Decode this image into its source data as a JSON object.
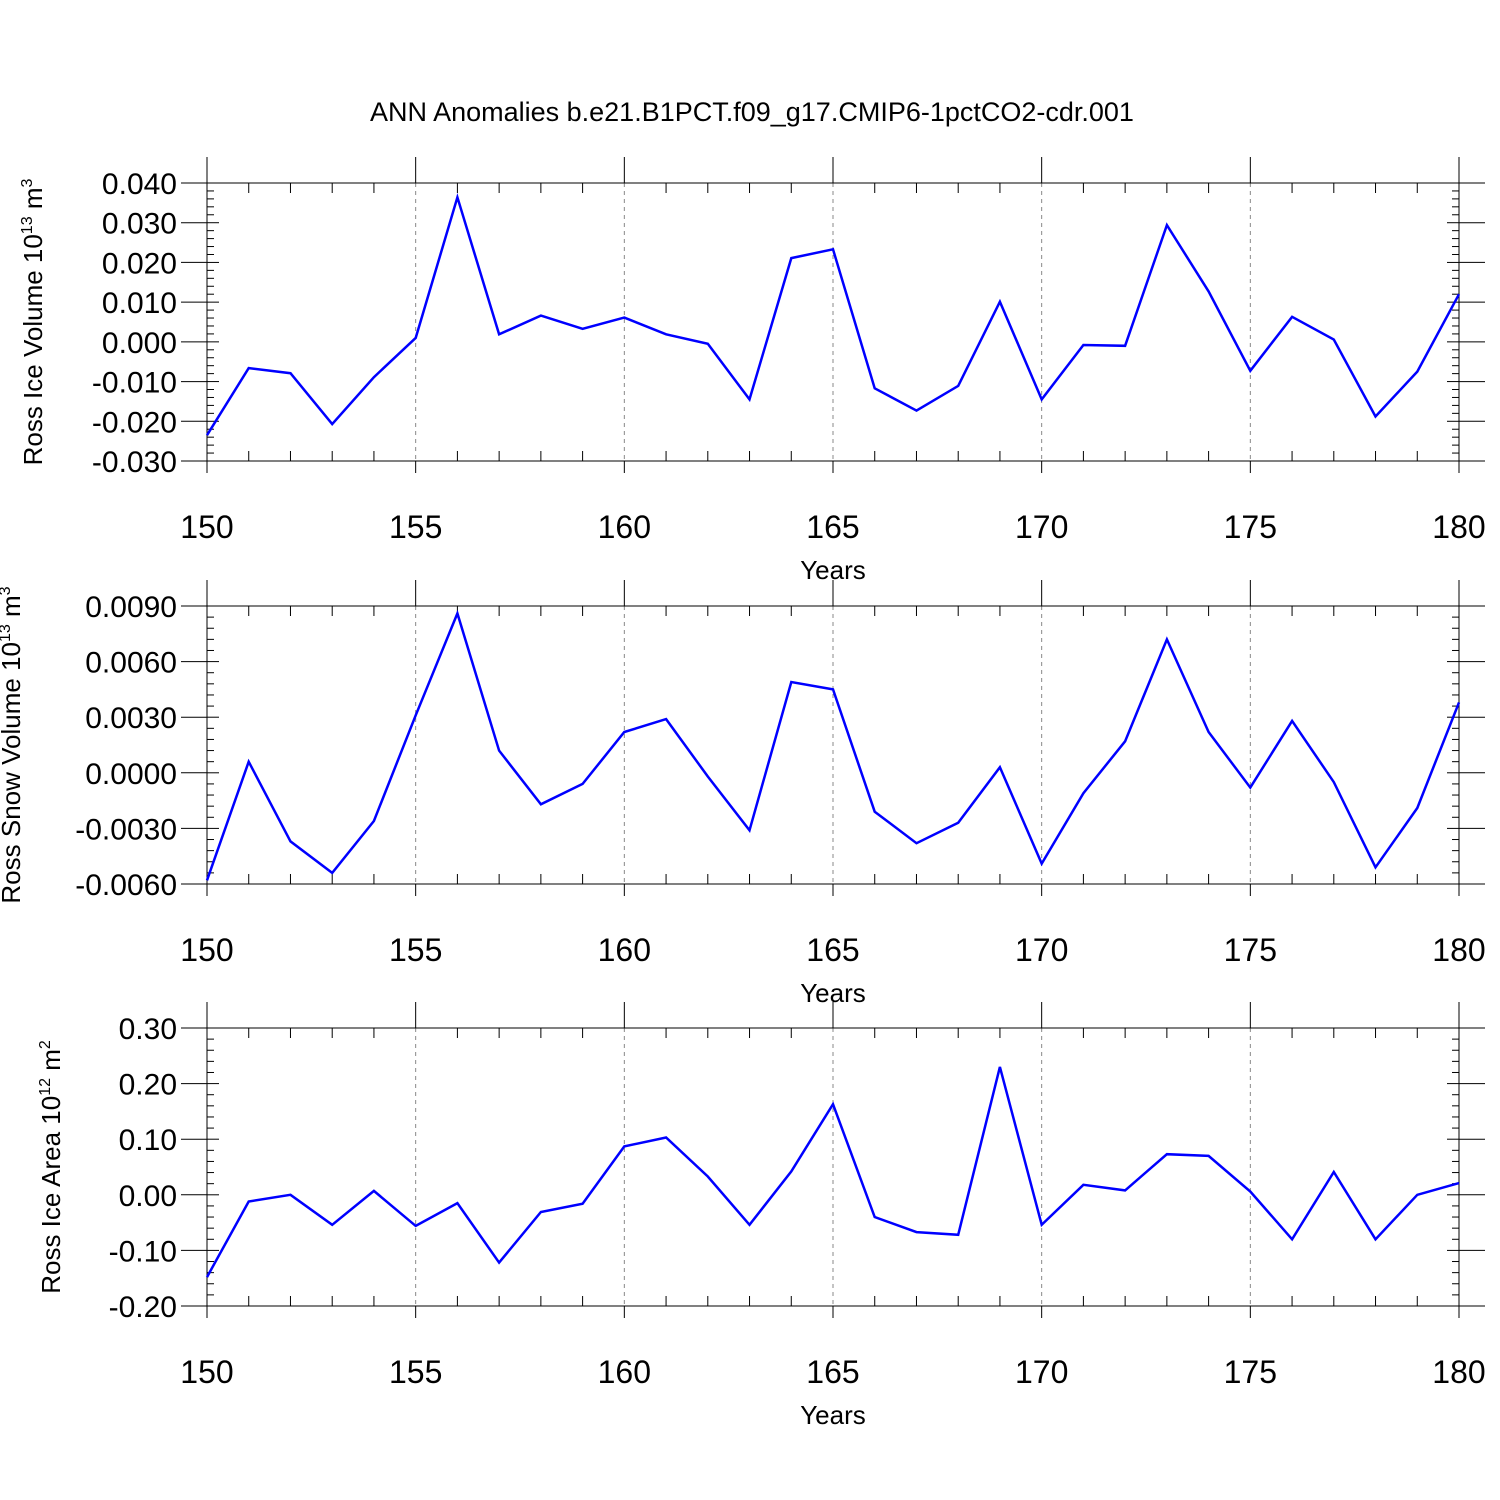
{
  "title": "ANN Anomalies b.e21.B1PCT.f09_g17.CMIP6-1pctCO2-cdr.001",
  "line_color": "#0000ff",
  "chart_data": [
    {
      "type": "line",
      "xlabel": "Years",
      "ylabel": "Ross Ice Volume 10",
      "ylabel_exp": "13",
      "ylabel_unit": "m",
      "ylabel_unit_exp": "3",
      "xlim": [
        150,
        180
      ],
      "ylim": [
        -0.03,
        0.04
      ],
      "yticks": [
        -0.03,
        -0.02,
        -0.01,
        0.0,
        0.01,
        0.02,
        0.03,
        0.04
      ],
      "ytick_labels": [
        "-0.030",
        "-0.020",
        "-0.010",
        "0.000",
        "0.010",
        "0.020",
        "0.030",
        "0.040"
      ],
      "xticks": [
        150,
        155,
        160,
        165,
        170,
        175,
        180
      ],
      "xtick_labels": [
        "150",
        "155",
        "160",
        "165",
        "170",
        "175",
        "180"
      ],
      "grid": "vertical dashed at major x ticks",
      "x": [
        150,
        151,
        152,
        153,
        154,
        155,
        156,
        157,
        158,
        159,
        160,
        161,
        162,
        163,
        164,
        165,
        166,
        167,
        168,
        169,
        170,
        171,
        172,
        173,
        174,
        175,
        176,
        177,
        178,
        179,
        180
      ],
      "y": [
        -0.0235,
        -0.0066,
        -0.0079,
        -0.0207,
        -0.0089,
        0.001,
        0.0364,
        0.0019,
        0.0066,
        0.0033,
        0.0061,
        0.0019,
        -0.0005,
        -0.0145,
        0.0211,
        0.0233,
        -0.0117,
        -0.0173,
        -0.0111,
        0.0101,
        -0.0145,
        -0.0008,
        -0.001,
        0.0294,
        0.0127,
        -0.0073,
        0.0063,
        0.0006,
        -0.0188,
        -0.0075,
        0.012
      ]
    },
    {
      "type": "line",
      "xlabel": "Years",
      "ylabel": "Ross Snow Volume 10",
      "ylabel_exp": "13",
      "ylabel_unit": "m",
      "ylabel_unit_exp": "3",
      "xlim": [
        150,
        180
      ],
      "ylim": [
        -0.006,
        0.009
      ],
      "yticks": [
        -0.006,
        -0.003,
        0.0,
        0.003,
        0.006,
        0.009
      ],
      "ytick_labels": [
        "-0.0060",
        "-0.0030",
        "0.0000",
        "0.0030",
        "0.0060",
        "0.0090"
      ],
      "xticks": [
        150,
        155,
        160,
        165,
        170,
        175,
        180
      ],
      "xtick_labels": [
        "150",
        "155",
        "160",
        "165",
        "170",
        "175",
        "180"
      ],
      "grid": "vertical dashed at major x ticks",
      "x": [
        150,
        151,
        152,
        153,
        154,
        155,
        156,
        157,
        158,
        159,
        160,
        161,
        162,
        163,
        164,
        165,
        166,
        167,
        168,
        169,
        170,
        171,
        172,
        173,
        174,
        175,
        176,
        177,
        178,
        179,
        180
      ],
      "y": [
        -0.0058,
        0.0006,
        -0.0037,
        -0.0054,
        -0.0026,
        0.0031,
        0.0086,
        0.0012,
        -0.0017,
        -0.0006,
        0.0022,
        0.0029,
        -0.0002,
        -0.0031,
        0.0049,
        0.0045,
        -0.0021,
        -0.0038,
        -0.0027,
        0.0003,
        -0.0049,
        -0.0011,
        0.0017,
        0.0072,
        0.0022,
        -0.0008,
        0.0028,
        -0.0005,
        -0.0051,
        -0.0019,
        0.0038
      ]
    },
    {
      "type": "line",
      "xlabel": "Years",
      "ylabel": "Ross Ice Area 10",
      "ylabel_exp": "12",
      "ylabel_unit": "m",
      "ylabel_unit_exp": "2",
      "xlim": [
        150,
        180
      ],
      "ylim": [
        -0.2,
        0.3
      ],
      "yticks": [
        -0.2,
        -0.1,
        0.0,
        0.1,
        0.2,
        0.3
      ],
      "ytick_labels": [
        "-0.20",
        "-0.10",
        "0.00",
        "0.10",
        "0.20",
        "0.30"
      ],
      "xticks": [
        150,
        155,
        160,
        165,
        170,
        175,
        180
      ],
      "xtick_labels": [
        "150",
        "155",
        "160",
        "165",
        "170",
        "175",
        "180"
      ],
      "grid": "vertical dashed at major x ticks",
      "x": [
        150,
        151,
        152,
        153,
        154,
        155,
        156,
        157,
        158,
        159,
        160,
        161,
        162,
        163,
        164,
        165,
        166,
        167,
        168,
        169,
        170,
        171,
        172,
        173,
        174,
        175,
        176,
        177,
        178,
        179,
        180
      ],
      "y": [
        -0.148,
        -0.012,
        0.0,
        -0.054,
        0.007,
        -0.056,
        -0.015,
        -0.122,
        -0.031,
        -0.016,
        0.087,
        0.103,
        0.033,
        -0.054,
        0.042,
        0.163,
        -0.04,
        -0.067,
        -0.072,
        0.23,
        -0.054,
        0.018,
        0.008,
        0.073,
        0.07,
        0.006,
        -0.08,
        0.041,
        -0.08,
        0.0,
        0.021
      ]
    }
  ]
}
